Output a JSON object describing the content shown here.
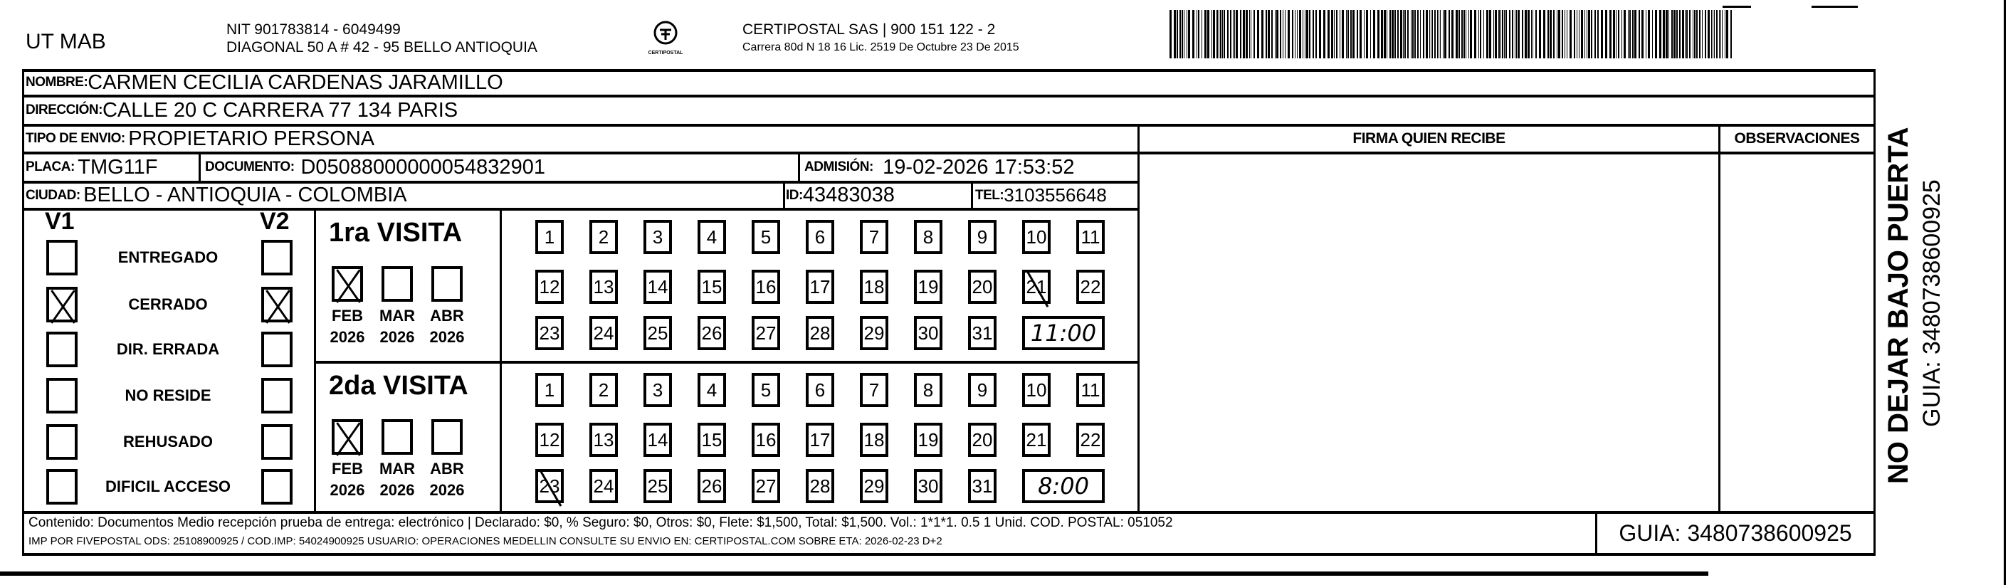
{
  "header": {
    "company": "UT MAB",
    "nit": "NIT 901783814 - 6049499",
    "address": "DIAGONAL 50 A # 42 - 95  BELLO  ANTIOQUIA",
    "carrier": "CERTIPOSTAL SAS | 900 151 122 - 2",
    "license": "Carrera 80d N 18 16  Lic. 2519 De Octubre 23 De 2015",
    "logo_text": "CERTIPOSTAL"
  },
  "recipient": {
    "nombre_label": "NOMBRE:",
    "nombre": "CARMEN CECILIA CARDENAS JARAMILLO",
    "direccion_label": "DIRECCIÓN:",
    "direccion": "CALLE 20 C CARRERA 77 134 PARIS",
    "tipo_label": "TIPO DE ENVIO:",
    "tipo": "PROPIETARIO PERSONA",
    "placa_label": "PLACA:",
    "placa": "TMG11F",
    "documento_label": "DOCUMENTO:",
    "documento": "D05088000000054832901",
    "admision_label": "ADMISIÓN:",
    "admision": "19-02-2026 17:53:52",
    "ciudad_label": "CIUDAD:",
    "ciudad": "BELLO - ANTIOQUIA - COLOMBIA",
    "id_label": "ID:",
    "id": "43483038",
    "tel_label": "TEL:",
    "tel": "3103556648"
  },
  "firma_label": "FIRMA QUIEN RECIBE",
  "observaciones_label": "OBSERVACIONES",
  "status": {
    "v1_label": "V1",
    "v2_label": "V2",
    "items": [
      {
        "label": "ENTREGADO",
        "v1": false,
        "v2": false
      },
      {
        "label": "CERRADO",
        "v1": true,
        "v2": true
      },
      {
        "label": "DIR. ERRADA",
        "v1": false,
        "v2": false
      },
      {
        "label": "NO RESIDE",
        "v1": false,
        "v2": false
      },
      {
        "label": "REHUSADO",
        "v1": false,
        "v2": false
      },
      {
        "label": "DIFICIL ACCESO",
        "v1": false,
        "v2": false
      }
    ]
  },
  "visits": [
    {
      "title": "1ra VISITA",
      "months": [
        {
          "m": "FEB",
          "y": "2026",
          "checked": true
        },
        {
          "m": "MAR",
          "y": "2026",
          "checked": false
        },
        {
          "m": "ABR",
          "y": "2026",
          "checked": false
        }
      ],
      "marked_day": 21,
      "time": "11:00"
    },
    {
      "title": "2da VISITA",
      "months": [
        {
          "m": "FEB",
          "y": "2026",
          "checked": true
        },
        {
          "m": "MAR",
          "y": "2026",
          "checked": false
        },
        {
          "m": "ABR",
          "y": "2026",
          "checked": false
        }
      ],
      "marked_day": 23,
      "time": "8:00"
    }
  ],
  "footer": {
    "line1": "Contenido: Documentos Medio recepción prueba de entrega: electrónico | Declarado: $0, % Seguro: $0, Otros: $0, Flete: $1,500, Total: $1,500. Vol.: 1*1*1. 0.5  1 Unid. COD. POSTAL: 051052",
    "line2": "IMP POR FIVEPOSTAL ODS: 25108900925 / COD.IMP: 54024900925 USUARIO: OPERACIONES MEDELLIN CONSULTE SU ENVIO EN: CERTIPOSTAL.COM SOBRE ETA: 2026-02-23 D+2",
    "guia": "GUIA: 3480738600925"
  },
  "side": {
    "warning": "NO DEJAR BAJO PUERTA",
    "guia": "GUIA: 3480738600925"
  }
}
